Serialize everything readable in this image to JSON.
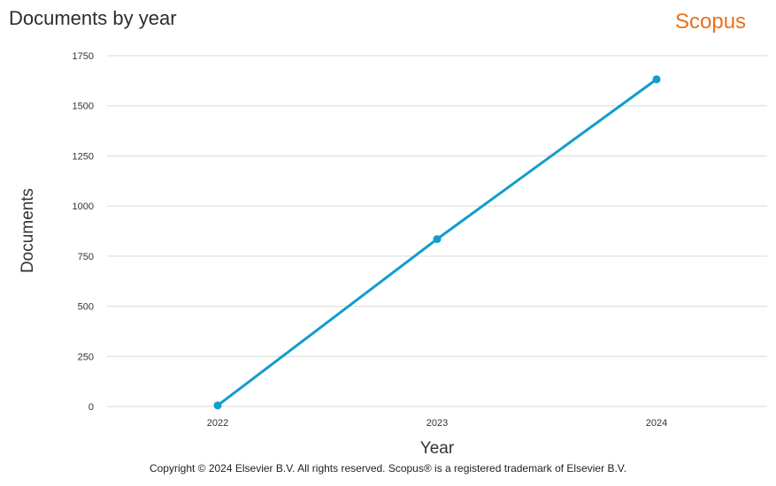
{
  "header": {
    "title": "Documents by year",
    "brand": "Scopus"
  },
  "footer": {
    "copyright": "Copyright © 2024 Elsevier B.V. All rights reserved. Scopus® is a registered trademark of Elsevier B.V."
  },
  "colors": {
    "line": "#109dcb",
    "grid": "#d9d9d9",
    "brand": "#e9711c"
  },
  "chart_data": {
    "type": "line",
    "xlabel": "Year",
    "ylabel": "Documents",
    "x": [
      "2022",
      "2023",
      "2024"
    ],
    "series": [
      {
        "values": [
          5,
          835,
          1632
        ]
      }
    ],
    "yticks": [
      "0",
      "250",
      "500",
      "750",
      "1000",
      "1250",
      "1500",
      "1750"
    ],
    "ylim": [
      0,
      1750
    ],
    "grid": true,
    "legend": "none"
  }
}
